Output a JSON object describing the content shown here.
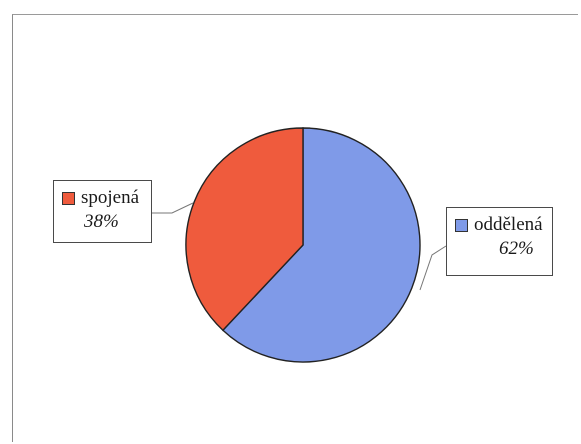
{
  "chart_data": {
    "type": "pie",
    "slices": [
      {
        "label": "oddělená",
        "percent_label": "62%",
        "value": 62,
        "color": "#7f9ae8"
      },
      {
        "label": "spojená",
        "percent_label": "38%",
        "value": 38,
        "color": "#ef5b3d"
      }
    ]
  },
  "labels": {
    "oddelena": {
      "name": "oddělená",
      "percent": "62%"
    },
    "spojena": {
      "name": "spojená",
      "percent": "38%"
    }
  }
}
